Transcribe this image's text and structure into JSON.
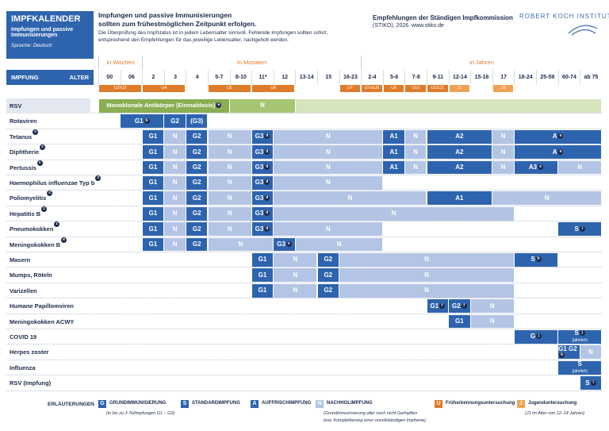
{
  "header": {
    "badge_title": "IMPFKALENDER",
    "badge_subtitle": "Impfungen und passive Immunisierungen",
    "language": "Sprache: Deutsch",
    "headline1": "Impfungen und passive Immunisierungen",
    "headline2": "sollten zum frühestmöglichen Zeitpunkt erfolgen.",
    "text1": "Die Überprüfung des Impfstatus ist in jedem Lebensalter sinnvoll. Fehlende Impfungen sollten sofort,",
    "text2": "entsprechend den Empfehlungen für das jeweilige Lebensalter, nachgeholt werden.",
    "right1": "Empfehlungen der Ständigen Impfkommission",
    "right2": "(STIKO), 2026. www.stiko.de",
    "logo": "ROBERT KOCH INSTITUT"
  },
  "table": {
    "col_vaccine": "IMPFUNG",
    "col_age": "ALTER",
    "age_groups": [
      {
        "label": "in Wochen",
        "span": 2
      },
      {
        "label": "in Monaten",
        "span": 10
      },
      {
        "label": "in Jahren",
        "span": 11
      }
    ],
    "ages": [
      "00",
      "06",
      "2",
      "3",
      "4",
      "5-7",
      "8-10",
      "11*",
      "12",
      "13-14",
      "15",
      "16-23",
      "2-4",
      "5-6",
      "7-8",
      "9-11",
      "12-14",
      "15-16",
      "17",
      "18-24",
      "25-59",
      "60-74",
      "ab 75"
    ],
    "checkups": [
      {
        "label": "U2/U3",
        "span": 2
      },
      {
        "label": "U4",
        "span": 2
      },
      {
        "span": 1
      },
      {
        "label": "U5",
        "span": 2
      },
      {
        "label": "U6",
        "span": 2
      },
      {
        "span": 2
      },
      {
        "label": "U7",
        "span": 1
      },
      {
        "label": "U7a/U8",
        "span": 1
      },
      {
        "label": "U9",
        "span": 1
      },
      {
        "label": "U10",
        "span": 1
      },
      {
        "label": "U11/J1",
        "span": 1
      },
      {
        "label": "J1",
        "span": 1
      },
      {
        "span": 1
      },
      {
        "label": "J2",
        "span": 1
      },
      {
        "span": 4
      }
    ],
    "rows": [
      {
        "name": "RSV",
        "cells": [
          {
            "label": "Monoklonale Antikörper (Einmaldosis)",
            "note": "a",
            "kind": "green",
            "span": 6
          },
          {
            "label": "N",
            "kind": "green-mid",
            "span": 3
          },
          {
            "kind": "green-pale",
            "span": 14
          }
        ]
      },
      {
        "name": "Rotaviren",
        "cells": [
          {
            "span": 1
          },
          {
            "label": "G1",
            "note": "b",
            "kind": "dark",
            "span": 2
          },
          {
            "label": "G2",
            "kind": "dark",
            "span": 1
          },
          {
            "label": "(G3)",
            "kind": "dark",
            "span": 1
          },
          {
            "span": 18
          }
        ]
      },
      {
        "name": "Tetanus",
        "note": "c",
        "cells": [
          {
            "span": 2
          },
          {
            "label": "G1",
            "kind": "dark",
            "span": 1
          },
          {
            "label": "N",
            "kind": "light",
            "span": 1
          },
          {
            "label": "G2",
            "kind": "dark",
            "span": 1
          },
          {
            "label": "N",
            "kind": "light",
            "span": 2
          },
          {
            "label": "G3",
            "note": "d",
            "kind": "dark",
            "span": 1
          },
          {
            "label": "N",
            "kind": "light",
            "span": 5
          },
          {
            "label": "A1",
            "kind": "dark",
            "span": 1
          },
          {
            "label": "N",
            "kind": "light",
            "span": 1
          },
          {
            "label": "A2",
            "kind": "dark",
            "span": 3
          },
          {
            "label": "N",
            "kind": "light",
            "span": 1
          },
          {
            "label": "A",
            "note": "e",
            "kind": "dark",
            "span": 4
          }
        ]
      },
      {
        "name": "Diphtherie",
        "note": "c",
        "cells": [
          {
            "span": 2
          },
          {
            "label": "G1",
            "kind": "dark",
            "span": 1
          },
          {
            "label": "N",
            "kind": "light",
            "span": 1
          },
          {
            "label": "G2",
            "kind": "dark",
            "span": 1
          },
          {
            "label": "N",
            "kind": "light",
            "span": 2
          },
          {
            "label": "G3",
            "note": "d",
            "kind": "dark",
            "span": 1
          },
          {
            "label": "N",
            "kind": "light",
            "span": 5
          },
          {
            "label": "A1",
            "kind": "dark",
            "span": 1
          },
          {
            "label": "N",
            "kind": "light",
            "span": 1
          },
          {
            "label": "A2",
            "kind": "dark",
            "span": 3
          },
          {
            "label": "N",
            "kind": "light",
            "span": 1
          },
          {
            "label": "A",
            "note": "e",
            "kind": "dark",
            "span": 4
          }
        ]
      },
      {
        "name": "Pertussis",
        "note": "c",
        "cells": [
          {
            "span": 2
          },
          {
            "label": "G1",
            "kind": "dark",
            "span": 1
          },
          {
            "label": "N",
            "kind": "light",
            "span": 1
          },
          {
            "label": "G2",
            "kind": "dark",
            "span": 1
          },
          {
            "label": "N",
            "kind": "light",
            "span": 2
          },
          {
            "label": "G3",
            "note": "d",
            "kind": "dark",
            "span": 1
          },
          {
            "label": "N",
            "kind": "light",
            "span": 5
          },
          {
            "label": "A1",
            "kind": "dark",
            "span": 1
          },
          {
            "label": "N",
            "kind": "light",
            "span": 1
          },
          {
            "label": "A2",
            "kind": "dark",
            "span": 3
          },
          {
            "label": "N",
            "kind": "light",
            "span": 1
          },
          {
            "label": "A3",
            "note": "e",
            "kind": "dark",
            "span": 2
          },
          {
            "label": "N",
            "kind": "light",
            "span": 2
          }
        ]
      },
      {
        "name": "Haemophilus influenzae Typ b",
        "note": "c",
        "cells": [
          {
            "span": 2
          },
          {
            "label": "G1",
            "kind": "dark",
            "span": 1
          },
          {
            "label": "N",
            "kind": "light",
            "span": 1
          },
          {
            "label": "G2",
            "kind": "dark",
            "span": 1
          },
          {
            "label": "N",
            "kind": "light",
            "span": 2
          },
          {
            "label": "G3",
            "note": "d",
            "kind": "dark",
            "span": 1
          },
          {
            "label": "N",
            "kind": "light",
            "span": 5
          },
          {
            "span": 10
          }
        ]
      },
      {
        "name": "Poliomyelitis",
        "note": "c",
        "cells": [
          {
            "span": 2
          },
          {
            "label": "G1",
            "kind": "dark",
            "span": 1
          },
          {
            "label": "N",
            "kind": "light",
            "span": 1
          },
          {
            "label": "G2",
            "kind": "dark",
            "span": 1
          },
          {
            "label": "N",
            "kind": "light",
            "span": 2
          },
          {
            "label": "G3",
            "note": "d",
            "kind": "dark",
            "span": 1
          },
          {
            "label": "N",
            "kind": "light",
            "span": 7
          },
          {
            "label": "A1",
            "kind": "dark",
            "span": 3
          },
          {
            "label": "N",
            "kind": "light",
            "span": 5
          }
        ]
      },
      {
        "name": "Hepatitis B",
        "note": "c",
        "cells": [
          {
            "span": 2
          },
          {
            "label": "G1",
            "kind": "dark",
            "span": 1
          },
          {
            "label": "N",
            "kind": "light",
            "span": 1
          },
          {
            "label": "G2",
            "kind": "dark",
            "span": 1
          },
          {
            "label": "N",
            "kind": "light",
            "span": 2
          },
          {
            "label": "G3",
            "note": "d",
            "kind": "dark",
            "span": 1
          },
          {
            "label": "N",
            "kind": "light",
            "span": 11
          },
          {
            "span": 4
          }
        ]
      },
      {
        "name": "Pneumokokken",
        "note": "c",
        "cells": [
          {
            "span": 2
          },
          {
            "label": "G1",
            "kind": "dark",
            "span": 1
          },
          {
            "label": "N",
            "kind": "light",
            "span": 1
          },
          {
            "label": "G2",
            "kind": "dark",
            "span": 1
          },
          {
            "label": "N",
            "kind": "light",
            "span": 2
          },
          {
            "label": "G3",
            "note": "d",
            "kind": "dark",
            "span": 1
          },
          {
            "label": "N",
            "kind": "light",
            "span": 5
          },
          {
            "span": 8
          },
          {
            "label": "S",
            "note": "i",
            "kind": "dark",
            "span": 2
          }
        ]
      },
      {
        "name": "Meningokokken B",
        "note": "e",
        "cells": [
          {
            "span": 2
          },
          {
            "label": "G1",
            "kind": "dark",
            "span": 1
          },
          {
            "label": "N",
            "kind": "light",
            "span": 1
          },
          {
            "label": "G2",
            "kind": "dark",
            "span": 1
          },
          {
            "label": "N",
            "kind": "light",
            "span": 3
          },
          {
            "label": "G3",
            "note": "e",
            "kind": "dark",
            "span": 1
          },
          {
            "label": "N",
            "kind": "light",
            "span": 4
          },
          {
            "span": 10
          }
        ]
      },
      {
        "name": "Masern",
        "cells": [
          {
            "span": 7
          },
          {
            "label": "G1",
            "kind": "dark",
            "span": 1
          },
          {
            "label": "N",
            "kind": "light",
            "span": 2
          },
          {
            "label": "G2",
            "kind": "dark",
            "span": 1
          },
          {
            "label": "N",
            "kind": "light",
            "span": 8
          },
          {
            "label": "S",
            "note": "h",
            "kind": "dark",
            "span": 2
          },
          {
            "span": 2
          }
        ]
      },
      {
        "name": "Mumps, Röteln",
        "cells": [
          {
            "span": 7
          },
          {
            "label": "G1",
            "kind": "dark",
            "span": 1
          },
          {
            "label": "N",
            "kind": "light",
            "span": 2
          },
          {
            "label": "G2",
            "kind": "dark",
            "span": 1
          },
          {
            "label": "N",
            "kind": "light",
            "span": 8
          },
          {
            "span": 4
          }
        ]
      },
      {
        "name": "Varizellen",
        "cells": [
          {
            "span": 7
          },
          {
            "label": "G1",
            "kind": "dark",
            "span": 1
          },
          {
            "label": "N",
            "kind": "light",
            "span": 2
          },
          {
            "label": "G2",
            "kind": "dark",
            "span": 1
          },
          {
            "label": "N",
            "kind": "light",
            "span": 8
          },
          {
            "span": 4
          }
        ]
      },
      {
        "name": "Humane Papillomviren",
        "cells": [
          {
            "span": 15
          },
          {
            "label": "G1",
            "note": "f",
            "kind": "dark",
            "span": 1
          },
          {
            "label": "G2",
            "note": "f",
            "kind": "dark",
            "span": 1
          },
          {
            "label": "N",
            "kind": "light",
            "span": 2
          },
          {
            "span": 4
          }
        ]
      },
      {
        "name": "Meningokokken ACWY",
        "cells": [
          {
            "span": 16
          },
          {
            "label": "G1",
            "kind": "dark",
            "span": 1
          },
          {
            "label": "N",
            "kind": "light",
            "span": 2
          },
          {
            "span": 4
          }
        ]
      },
      {
        "name": "COVID 19",
        "cells": [
          {
            "span": 19
          },
          {
            "label": "G",
            "note": "j",
            "kind": "dark",
            "span": 2
          },
          {
            "label": "S",
            "note": "j",
            "sub": "(jährlich)",
            "kind": "dark",
            "span": 2
          }
        ]
      },
      {
        "name": "Herpes zoster",
        "cells": [
          {
            "span": 21
          },
          {
            "label": "G1 G2",
            "note": "k",
            "kind": "dark",
            "span": 1
          },
          {
            "label": "N",
            "kind": "light",
            "span": 1
          }
        ]
      },
      {
        "name": "Influenza",
        "cells": [
          {
            "span": 21
          },
          {
            "label": "S",
            "sub": "(jährlich)",
            "kind": "dark",
            "span": 2
          }
        ]
      },
      {
        "name": "RSV (Impfung)",
        "cells": [
          {
            "span": 22
          },
          {
            "label": "S",
            "note": "l",
            "kind": "dark",
            "span": 1
          }
        ]
      }
    ]
  },
  "legend": {
    "title": "ERLÄUTERUNGEN",
    "items": [
      {
        "key": "G",
        "kind": "dark",
        "label": "GRUNDIMMUNISIERUNG",
        "detail": "(in bis zu 3 Teilimpfungen G1 – G3)"
      },
      {
        "key": "S",
        "kind": "dark",
        "label": "STANDARDIMPFUNG"
      },
      {
        "key": "A",
        "kind": "dark",
        "label": "AUFFRISCHIMPFUNG"
      },
      {
        "key": "N",
        "kind": "light",
        "label": "NACHHOLIMPFUNG",
        "detail": "(Grundimmunisierung aller noch nicht Geimpften",
        "detail2": "bzw. Komplettierung einer unvollständigen Impfserie)"
      },
      {
        "key": "U",
        "kind": "orange",
        "label": "Früherkennungsuntersuchung"
      },
      {
        "key": "J",
        "kind": "orange-light",
        "label": "Jugenduntersuchung",
        "detail": "(J1 im Alter von 12–14 Jahren)"
      }
    ]
  }
}
